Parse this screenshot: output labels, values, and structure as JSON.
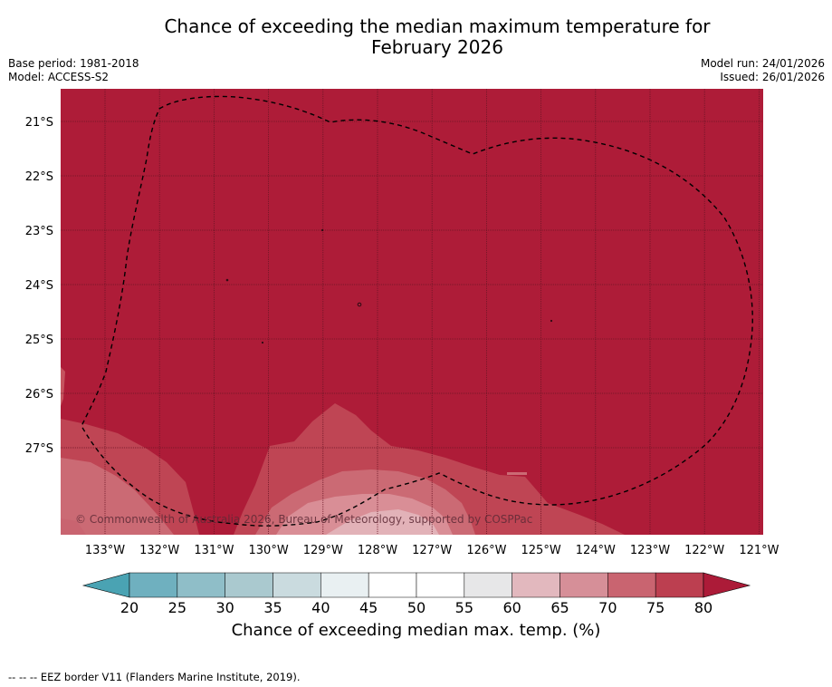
{
  "title": {
    "line1": "Chance of exceeding the median maximum temperature for",
    "line2": "February 2026"
  },
  "header_left": {
    "base_period": "Base period: 1981-2018",
    "model": "Model: ACCESS-S2"
  },
  "header_right": {
    "model_run": "Model run: 24/01/2026",
    "issued": "Issued: 26/01/2026"
  },
  "map": {
    "lat_labels": [
      "21°S",
      "22°S",
      "23°S",
      "24°S",
      "25°S",
      "26°S",
      "27°S"
    ],
    "lon_labels": [
      "133°W",
      "132°W",
      "131°W",
      "130°W",
      "129°W",
      "128°W",
      "127°W",
      "126°W",
      "125°W",
      "124°W",
      "123°W",
      "122°W",
      "121°W"
    ],
    "copyright": "© Commonwealth of Australia 2026, Bureau of Meteorology, supported by COSPPac",
    "dominant_category": "80+"
  },
  "colorbar": {
    "ticks": [
      "20",
      "25",
      "30",
      "35",
      "40",
      "45",
      "50",
      "55",
      "60",
      "65",
      "70",
      "75",
      "80"
    ],
    "colors": [
      "#4aa3b3",
      "#6fb0bf",
      "#8fbec8",
      "#aac9cf",
      "#cadbdf",
      "#e9f0f2",
      "#ffffff",
      "#ffffff",
      "#e7e7e8",
      "#e2b8be",
      "#d68f98",
      "#c96470",
      "#bc3f50",
      "#ac1b38"
    ],
    "label": "Chance of exceeding median max. temp. (%)"
  },
  "footnote": "--  --  -- EEZ border V11 (Flanders Marine Institute, 2019)."
}
